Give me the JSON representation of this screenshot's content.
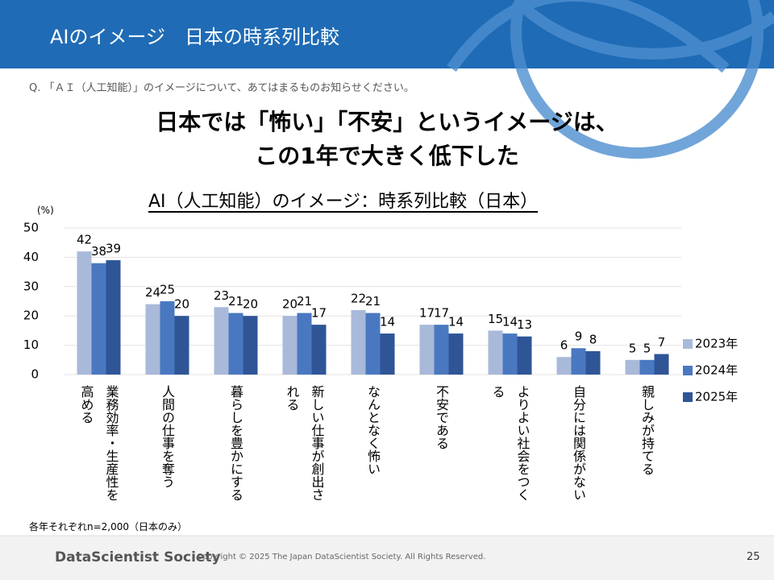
{
  "header": {
    "title": "AIのイメージ　日本の時系列比較"
  },
  "question": "Q. 「ＡＩ（人工知能）」のイメージについて、あてはまるものお知らせください。",
  "headline": [
    "日本では「怖い」「不安」というイメージは、",
    "この1年で大きく低下した"
  ],
  "note": "各年それぞれn=2,000（日本のみ）",
  "footer": {
    "logo": "DataScientist Society",
    "copyright": "Copyright © 2025 The Japan DataScientist Society. All Rights Reserved.",
    "page": "25"
  },
  "chart_data": {
    "type": "bar",
    "title": "AI（人工知能）のイメージ：時系列比較（日本）",
    "y_label": "(%)",
    "categories": [
      "業務効率・生産性を高める",
      "人間の仕事を奪う",
      "暮らしを豊かにする",
      "新しい仕事が創出される",
      "なんとなく怖い",
      "不安である",
      "よりよい社会をつくる",
      "自分には関係がない",
      "親しみが持てる"
    ],
    "series": [
      {
        "name": "2023年",
        "color": "#a9b9d9",
        "values": [
          42,
          24,
          23,
          20,
          22,
          17,
          15,
          6,
          5
        ]
      },
      {
        "name": "2024年",
        "color": "#4a78c0",
        "values": [
          38,
          25,
          21,
          21,
          21,
          17,
          14,
          9,
          5
        ]
      },
      {
        "name": "2025年",
        "color": "#2f5597",
        "values": [
          39,
          20,
          20,
          17,
          14,
          14,
          13,
          8,
          7
        ]
      }
    ],
    "ylim": [
      0,
      50
    ],
    "yticks": [
      0,
      10,
      20,
      30,
      40,
      50
    ],
    "grid": true,
    "legend": "right"
  }
}
